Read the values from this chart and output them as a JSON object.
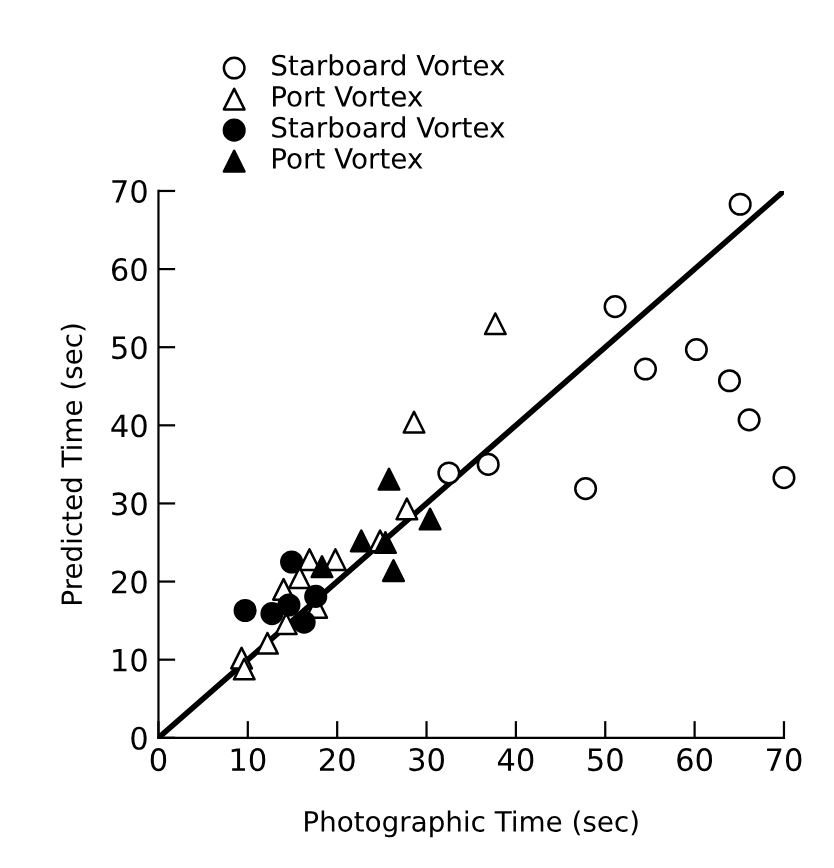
{
  "chart_data": {
    "type": "scatter",
    "xlabel": "Photographic Time (sec)",
    "ylabel": "Predicted Time (sec)",
    "xlim": [
      0,
      70
    ],
    "ylim": [
      0,
      70
    ],
    "xticks": [
      0,
      10,
      20,
      30,
      40,
      50,
      60,
      70
    ],
    "yticks": [
      0,
      10,
      20,
      30,
      40,
      50,
      60,
      70
    ],
    "grid": false,
    "legend": "top left",
    "series": [
      {
        "name": "Starboard Vortex",
        "color": "#ffffff",
        "marker": "circle",
        "x": [
          51.1,
          65.1,
          54.5,
          60.2,
          63.9,
          66.1,
          70,
          47.8,
          36.9,
          32.5
        ],
        "values": [
          55.2,
          68.3,
          47.2,
          49.7,
          45.7,
          40.7,
          33.3,
          31.9,
          35.0,
          33.9
        ]
      },
      {
        "name": "Port Vortex",
        "color": "#ffffff",
        "marker": "triangle",
        "x": [
          37.7,
          28.6,
          27.8,
          24.8,
          19.8,
          16.9,
          15.8,
          14.0,
          14.3,
          17.7,
          12.2,
          9.3,
          9.6
        ],
        "values": [
          53.0,
          40.4,
          29.3,
          25.2,
          22.8,
          22.8,
          20.5,
          19.0,
          14.6,
          16.7,
          12.1,
          10.2,
          8.8
        ]
      },
      {
        "name": "Starboard Vortex",
        "color": "#000000",
        "marker": "circle",
        "x": [
          9.7,
          14.9,
          12.7,
          14.6,
          16.3,
          17.6
        ],
        "values": [
          16.3,
          22.5,
          15.9,
          17.0,
          14.8,
          18.1
        ]
      },
      {
        "name": "Port Vortex",
        "color": "#000000",
        "marker": "triangle",
        "x": [
          25.8,
          30.4,
          22.7,
          25.4,
          26.3,
          18.3
        ],
        "values": [
          33.1,
          28.0,
          25.2,
          25.0,
          21.4,
          21.9
        ]
      },
      {
        "type": "line",
        "color": "#000000",
        "x": [
          0,
          70
        ],
        "values": [
          0,
          70
        ]
      }
    ]
  }
}
